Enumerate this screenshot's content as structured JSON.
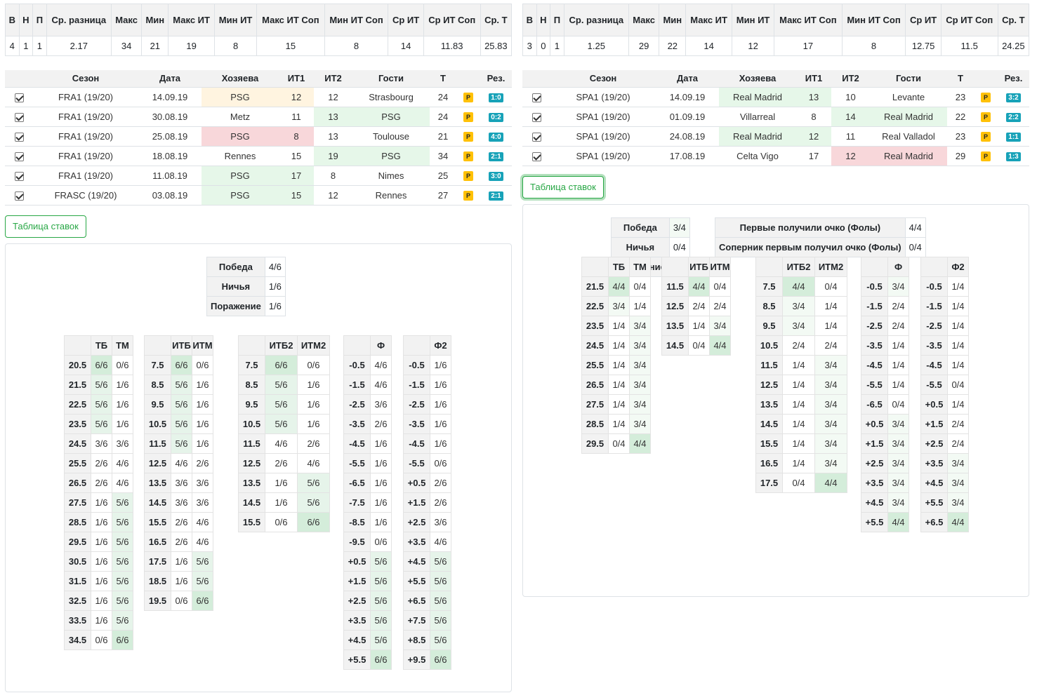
{
  "left": {
    "summary": {
      "headers": [
        "В",
        "Н",
        "П",
        "Ср. разница",
        "Макс",
        "Мин",
        "Макс ИТ",
        "Мин ИТ",
        "Макс ИТ Соп",
        "Мин ИТ Соп",
        "Ср ИТ",
        "Ср ИТ Соп",
        "Ср. Т"
      ],
      "values": [
        "4",
        "1",
        "1",
        "2.17",
        "34",
        "21",
        "19",
        "8",
        "15",
        "8",
        "14",
        "11.83",
        "25.83"
      ]
    },
    "matches": {
      "headers": [
        "",
        "Сезон",
        "Дата",
        "Хозяева",
        "ИТ1",
        "ИТ2",
        "Гости",
        "Т",
        "",
        "Рез."
      ],
      "rows": [
        {
          "season": "FRA1 (19/20)",
          "date": "14.09.19",
          "home": "PSG",
          "it1": "12",
          "it2": "12",
          "away": "Strasbourg",
          "t": "24",
          "p": "P",
          "res": "1:0",
          "hl": "home",
          "hlc": "c-draw"
        },
        {
          "season": "FRA1 (19/20)",
          "date": "30.08.19",
          "home": "Metz",
          "it1": "11",
          "it2": "13",
          "away": "PSG",
          "t": "24",
          "p": "P",
          "res": "0:2",
          "hl": "away",
          "hlc": "c-win"
        },
        {
          "season": "FRA1 (19/20)",
          "date": "25.08.19",
          "home": "PSG",
          "it1": "8",
          "it2": "13",
          "away": "Toulouse",
          "t": "21",
          "p": "P",
          "res": "4:0",
          "hl": "home",
          "hlc": "c-lose"
        },
        {
          "season": "FRA1 (19/20)",
          "date": "18.08.19",
          "home": "Rennes",
          "it1": "15",
          "it2": "19",
          "away": "PSG",
          "t": "34",
          "p": "P",
          "res": "2:1",
          "hl": "away",
          "hlc": "c-win"
        },
        {
          "season": "FRA1 (19/20)",
          "date": "11.08.19",
          "home": "PSG",
          "it1": "17",
          "it2": "8",
          "away": "Nimes",
          "t": "25",
          "p": "P",
          "res": "3:0",
          "hl": "home",
          "hlc": "c-win"
        },
        {
          "season": "FRASC (19/20)",
          "date": "03.08.19",
          "home": "PSG",
          "it1": "15",
          "it2": "12",
          "away": "Rennes",
          "t": "27",
          "p": "P",
          "res": "2:1",
          "hl": "home",
          "hlc": "c-win"
        }
      ]
    },
    "button": "Таблица ставок",
    "outcome": [
      [
        "Победа",
        "4/6"
      ],
      [
        "Ничья",
        "1/6"
      ],
      [
        "Поражение",
        "1/6"
      ]
    ],
    "grids": [
      {
        "h": [
          "",
          "ТБ",
          "ТМ"
        ],
        "rows": [
          [
            "20.5",
            "6/6",
            "0/6"
          ],
          [
            "21.5",
            "5/6",
            "1/6"
          ],
          [
            "22.5",
            "5/6",
            "1/6"
          ],
          [
            "23.5",
            "5/6",
            "1/6"
          ],
          [
            "24.5",
            "3/6",
            "3/6"
          ],
          [
            "25.5",
            "2/6",
            "4/6"
          ],
          [
            "26.5",
            "2/6",
            "4/6"
          ],
          [
            "27.5",
            "1/6",
            "5/6"
          ],
          [
            "28.5",
            "1/6",
            "5/6"
          ],
          [
            "29.5",
            "1/6",
            "5/6"
          ],
          [
            "30.5",
            "1/6",
            "5/6"
          ],
          [
            "31.5",
            "1/6",
            "5/6"
          ],
          [
            "32.5",
            "1/6",
            "5/6"
          ],
          [
            "33.5",
            "1/6",
            "5/6"
          ],
          [
            "34.5",
            "0/6",
            "6/6"
          ]
        ]
      },
      {
        "h": [
          "",
          "ИТБ",
          "ИТМ"
        ],
        "rows": [
          [
            "7.5",
            "6/6",
            "0/6"
          ],
          [
            "8.5",
            "5/6",
            "1/6"
          ],
          [
            "9.5",
            "5/6",
            "1/6"
          ],
          [
            "10.5",
            "5/6",
            "1/6"
          ],
          [
            "11.5",
            "5/6",
            "1/6"
          ],
          [
            "12.5",
            "4/6",
            "2/6"
          ],
          [
            "13.5",
            "3/6",
            "3/6"
          ],
          [
            "14.5",
            "3/6",
            "3/6"
          ],
          [
            "15.5",
            "2/6",
            "4/6"
          ],
          [
            "16.5",
            "2/6",
            "4/6"
          ],
          [
            "17.5",
            "1/6",
            "5/6"
          ],
          [
            "18.5",
            "1/6",
            "5/6"
          ],
          [
            "19.5",
            "0/6",
            "6/6"
          ]
        ]
      },
      {
        "h": [
          "",
          "ИТБ2",
          "ИТМ2"
        ],
        "rows": [
          [
            "7.5",
            "6/6",
            "0/6"
          ],
          [
            "8.5",
            "5/6",
            "1/6"
          ],
          [
            "9.5",
            "5/6",
            "1/6"
          ],
          [
            "10.5",
            "5/6",
            "1/6"
          ],
          [
            "11.5",
            "4/6",
            "2/6"
          ],
          [
            "12.5",
            "2/6",
            "4/6"
          ],
          [
            "13.5",
            "1/6",
            "5/6"
          ],
          [
            "14.5",
            "1/6",
            "5/6"
          ],
          [
            "15.5",
            "0/6",
            "6/6"
          ]
        ]
      },
      {
        "h": [
          "",
          "Ф"
        ],
        "rows": [
          [
            "-0.5",
            "4/6"
          ],
          [
            "-1.5",
            "4/6"
          ],
          [
            "-2.5",
            "3/6"
          ],
          [
            "-3.5",
            "2/6"
          ],
          [
            "-4.5",
            "1/6"
          ],
          [
            "-5.5",
            "1/6"
          ],
          [
            "-6.5",
            "1/6"
          ],
          [
            "-7.5",
            "1/6"
          ],
          [
            "-8.5",
            "1/6"
          ],
          [
            "-9.5",
            "0/6"
          ],
          [
            "+0.5",
            "5/6"
          ],
          [
            "+1.5",
            "5/6"
          ],
          [
            "+2.5",
            "5/6"
          ],
          [
            "+3.5",
            "5/6"
          ],
          [
            "+4.5",
            "5/6"
          ],
          [
            "+5.5",
            "6/6"
          ]
        ]
      },
      {
        "h": [
          "",
          "Ф2"
        ],
        "rows": [
          [
            "-0.5",
            "1/6"
          ],
          [
            "-1.5",
            "1/6"
          ],
          [
            "-2.5",
            "1/6"
          ],
          [
            "-3.5",
            "1/6"
          ],
          [
            "-4.5",
            "1/6"
          ],
          [
            "-5.5",
            "0/6"
          ],
          [
            "+0.5",
            "2/6"
          ],
          [
            "+1.5",
            "2/6"
          ],
          [
            "+2.5",
            "3/6"
          ],
          [
            "+3.5",
            "4/6"
          ],
          [
            "+4.5",
            "5/6"
          ],
          [
            "+5.5",
            "5/6"
          ],
          [
            "+6.5",
            "5/6"
          ],
          [
            "+7.5",
            "5/6"
          ],
          [
            "+8.5",
            "5/6"
          ],
          [
            "+9.5",
            "6/6"
          ]
        ]
      }
    ]
  },
  "right": {
    "summary": {
      "headers": [
        "В",
        "Н",
        "П",
        "Ср. разница",
        "Макс",
        "Мин",
        "Макс ИТ",
        "Мин ИТ",
        "Макс ИТ Соп",
        "Мин ИТ Соп",
        "Ср ИТ",
        "Ср ИТ Соп",
        "Ср. Т"
      ],
      "values": [
        "3",
        "0",
        "1",
        "1.25",
        "29",
        "22",
        "14",
        "12",
        "17",
        "8",
        "12.75",
        "11.5",
        "24.25"
      ]
    },
    "matches": {
      "headers": [
        "",
        "Сезон",
        "Дата",
        "Хозяева",
        "ИТ1",
        "ИТ2",
        "Гости",
        "Т",
        "",
        "Рез."
      ],
      "rows": [
        {
          "season": "SPA1 (19/20)",
          "date": "14.09.19",
          "home": "Real Madrid",
          "it1": "13",
          "it2": "10",
          "away": "Levante",
          "t": "23",
          "p": "P",
          "res": "3:2",
          "hl": "home",
          "hlc": "c-win"
        },
        {
          "season": "SPA1 (19/20)",
          "date": "01.09.19",
          "home": "Villarreal",
          "it1": "8",
          "it2": "14",
          "away": "Real Madrid",
          "t": "22",
          "p": "P",
          "res": "2:2",
          "hl": "away",
          "hlc": "c-win"
        },
        {
          "season": "SPA1 (19/20)",
          "date": "24.08.19",
          "home": "Real Madrid",
          "it1": "12",
          "it2": "11",
          "away": "Real Valladol",
          "t": "23",
          "p": "P",
          "res": "1:1",
          "hl": "home",
          "hlc": "c-win"
        },
        {
          "season": "SPA1 (19/20)",
          "date": "17.08.19",
          "home": "Celta Vigo",
          "it1": "17",
          "it2": "12",
          "away": "Real Madrid",
          "t": "29",
          "p": "P",
          "res": "1:3",
          "hl": "away",
          "hlc": "c-lose"
        }
      ]
    },
    "button": "Таблица ставок",
    "outcome": [
      [
        "Победа",
        "3/4"
      ],
      [
        "Ничья",
        "0/4"
      ],
      [
        "Поражение",
        "1/4"
      ]
    ],
    "first_point": [
      [
        "Первые получили очко (Фолы)",
        "4/4"
      ],
      [
        "Соперник первым получил очко (Фолы)",
        "0/4"
      ]
    ],
    "grids": [
      {
        "h": [
          "",
          "ТБ",
          "ТМ"
        ],
        "rows": [
          [
            "21.5",
            "4/4",
            "0/4"
          ],
          [
            "22.5",
            "3/4",
            "1/4"
          ],
          [
            "23.5",
            "1/4",
            "3/4"
          ],
          [
            "24.5",
            "1/4",
            "3/4"
          ],
          [
            "25.5",
            "1/4",
            "3/4"
          ],
          [
            "26.5",
            "1/4",
            "3/4"
          ],
          [
            "27.5",
            "1/4",
            "3/4"
          ],
          [
            "28.5",
            "1/4",
            "3/4"
          ],
          [
            "29.5",
            "0/4",
            "4/4"
          ]
        ]
      },
      {
        "h": [
          "",
          "ИТБ",
          "ИТМ"
        ],
        "rows": [
          [
            "11.5",
            "4/4",
            "0/4"
          ],
          [
            "12.5",
            "2/4",
            "2/4"
          ],
          [
            "13.5",
            "1/4",
            "3/4"
          ],
          [
            "14.5",
            "0/4",
            "4/4"
          ]
        ]
      },
      {
        "h": [
          "",
          "ИТБ2",
          "ИТМ2"
        ],
        "rows": [
          [
            "7.5",
            "4/4",
            "0/4"
          ],
          [
            "8.5",
            "3/4",
            "1/4"
          ],
          [
            "9.5",
            "3/4",
            "1/4"
          ],
          [
            "10.5",
            "2/4",
            "2/4"
          ],
          [
            "11.5",
            "1/4",
            "3/4"
          ],
          [
            "12.5",
            "1/4",
            "3/4"
          ],
          [
            "13.5",
            "1/4",
            "3/4"
          ],
          [
            "14.5",
            "1/4",
            "3/4"
          ],
          [
            "15.5",
            "1/4",
            "3/4"
          ],
          [
            "16.5",
            "1/4",
            "3/4"
          ],
          [
            "17.5",
            "0/4",
            "4/4"
          ]
        ]
      },
      {
        "h": [
          "",
          "Ф"
        ],
        "rows": [
          [
            "-0.5",
            "3/4"
          ],
          [
            "-1.5",
            "2/4"
          ],
          [
            "-2.5",
            "2/4"
          ],
          [
            "-3.5",
            "1/4"
          ],
          [
            "-4.5",
            "1/4"
          ],
          [
            "-5.5",
            "1/4"
          ],
          [
            "-6.5",
            "0/4"
          ],
          [
            "+0.5",
            "3/4"
          ],
          [
            "+1.5",
            "3/4"
          ],
          [
            "+2.5",
            "3/4"
          ],
          [
            "+3.5",
            "3/4"
          ],
          [
            "+4.5",
            "3/4"
          ],
          [
            "+5.5",
            "4/4"
          ]
        ]
      },
      {
        "h": [
          "",
          "Ф2"
        ],
        "rows": [
          [
            "-0.5",
            "1/4"
          ],
          [
            "-1.5",
            "1/4"
          ],
          [
            "-2.5",
            "1/4"
          ],
          [
            "-3.5",
            "1/4"
          ],
          [
            "-4.5",
            "1/4"
          ],
          [
            "-5.5",
            "0/4"
          ],
          [
            "+0.5",
            "1/4"
          ],
          [
            "+1.5",
            "2/4"
          ],
          [
            "+2.5",
            "2/4"
          ],
          [
            "+3.5",
            "3/4"
          ],
          [
            "+4.5",
            "3/4"
          ],
          [
            "+5.5",
            "3/4"
          ],
          [
            "+6.5",
            "4/4"
          ]
        ]
      }
    ]
  }
}
